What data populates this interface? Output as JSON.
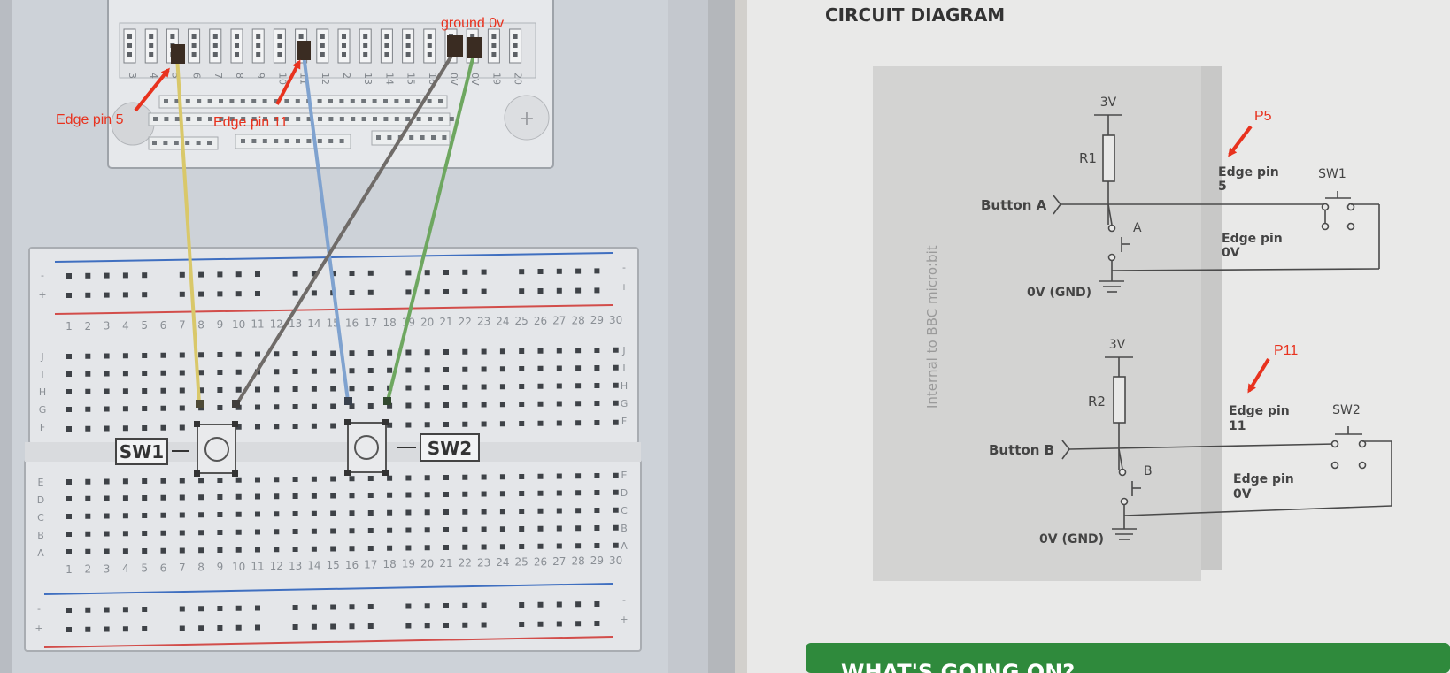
{
  "breadboard_page": {
    "annotations": {
      "edge_pin_5": "Edge pin 5",
      "edge_pin_11": "Edge pin 11",
      "ground_0v": "ground 0v"
    },
    "edge_connector_pins": [
      "3",
      "4",
      "5",
      "6",
      "7",
      "8",
      "9",
      "10",
      "11",
      "12",
      "2",
      "13",
      "14",
      "15",
      "16",
      "0V",
      "0V",
      "19",
      "20"
    ],
    "top_columns": [
      "1",
      "2",
      "3",
      "4",
      "5",
      "6",
      "7",
      "8",
      "9",
      "10",
      "11",
      "12",
      "13",
      "14",
      "15",
      "16",
      "17",
      "18",
      "19",
      "20",
      "21",
      "22",
      "23",
      "24",
      "25",
      "26",
      "27",
      "28",
      "29",
      "30"
    ],
    "bottom_columns": [
      "1",
      "2",
      "3",
      "4",
      "5",
      "6",
      "7",
      "8",
      "9",
      "10",
      "11",
      "12",
      "13",
      "14",
      "15",
      "16",
      "17",
      "18",
      "19",
      "20",
      "21",
      "22",
      "23",
      "24",
      "25",
      "26",
      "27",
      "28",
      "29",
      "30"
    ],
    "rows_top": [
      "J",
      "I",
      "H",
      "G",
      "F"
    ],
    "rows_bottom": [
      "E",
      "D",
      "C",
      "B",
      "A"
    ],
    "rail_signs": [
      "-",
      "+"
    ],
    "plus_sign": "+",
    "sw1_label": "SW1",
    "sw2_label": "SW2",
    "wire_colors": {
      "yellow": "#d9c86a",
      "blue": "#7fa2cf",
      "grey": "#6f6b68",
      "green": "#6ea760",
      "red_rail": "#d24d4a",
      "blue_rail": "#3f6fc0"
    }
  },
  "circuit_page": {
    "title": "CIRCUIT DIAGRAM",
    "side_label": "Internal to BBC micro:bit",
    "top": {
      "voltage": "3V",
      "resistor": "R1",
      "input": "Button A",
      "switch": "A",
      "ground": "0V (GND)",
      "pin_label": "Edge pin",
      "pin_num": "5",
      "gnd_pin_label": "Edge pin",
      "gnd_pin_num": "0V",
      "sw_label": "SW1",
      "annotation": "P5"
    },
    "bottom": {
      "voltage": "3V",
      "resistor": "R2",
      "input": "Button B",
      "switch": "B",
      "ground": "0V (GND)",
      "pin_label": "Edge pin",
      "pin_num": "11",
      "gnd_pin_label": "Edge pin",
      "gnd_pin_num": "0V",
      "sw_label": "SW2",
      "annotation": "P11"
    },
    "next_section": "WHAT'S GOING ON?"
  },
  "colors": {
    "annotation_red": "#e8321e",
    "green_bar": "#2f8a3c",
    "page_right": "#e9e9e8"
  }
}
